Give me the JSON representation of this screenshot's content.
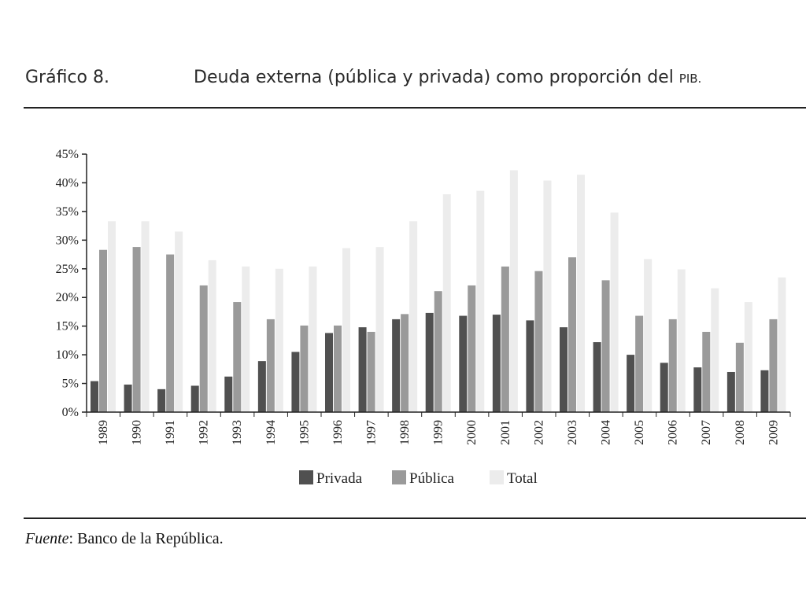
{
  "header": {
    "label": "Gráfico 8.",
    "title_main": "Deuda externa (pública y privada) como proporción del ",
    "title_abbr": "PIB."
  },
  "source": {
    "label": "Fuente",
    "text": ": Banco de la República."
  },
  "colors": {
    "privada": "#505050",
    "publica": "#9a9a9a",
    "total": "#ececec",
    "axis": "#222222"
  },
  "chart_data": {
    "type": "bar",
    "title": "",
    "xlabel": "",
    "ylabel": "",
    "ylim": [
      0,
      45
    ],
    "yticks": [
      "0%",
      "5%",
      "10%",
      "15%",
      "20%",
      "25%",
      "30%",
      "35%",
      "40%",
      "45%"
    ],
    "grid": false,
    "legend_position": "bottom",
    "categories": [
      "1989",
      "1990",
      "1991",
      "1992",
      "1993",
      "1994",
      "1995",
      "1996",
      "1997",
      "1998",
      "1999",
      "2000",
      "2001",
      "2002",
      "2003",
      "2004",
      "2005",
      "2006",
      "2007",
      "2008",
      "2009"
    ],
    "series": [
      {
        "name": "Privada",
        "values": [
          5.4,
          4.8,
          4.0,
          4.6,
          6.2,
          8.9,
          10.5,
          13.8,
          14.8,
          16.2,
          17.3,
          16.8,
          17.0,
          16.0,
          14.8,
          12.2,
          10.0,
          8.6,
          7.8,
          7.0,
          7.3
        ]
      },
      {
        "name": "Pública",
        "values": [
          28.3,
          28.8,
          27.5,
          22.1,
          19.2,
          16.2,
          15.1,
          15.1,
          14.0,
          17.1,
          21.1,
          22.1,
          25.4,
          24.6,
          27.0,
          23.0,
          16.8,
          16.2,
          14.0,
          12.1,
          16.2
        ]
      },
      {
        "name": "Total",
        "values": [
          33.3,
          33.3,
          31.5,
          26.5,
          25.4,
          25.0,
          25.4,
          28.6,
          28.8,
          33.3,
          38.0,
          38.6,
          42.2,
          40.4,
          41.4,
          34.8,
          26.7,
          24.9,
          21.6,
          19.2,
          23.5
        ]
      }
    ]
  }
}
